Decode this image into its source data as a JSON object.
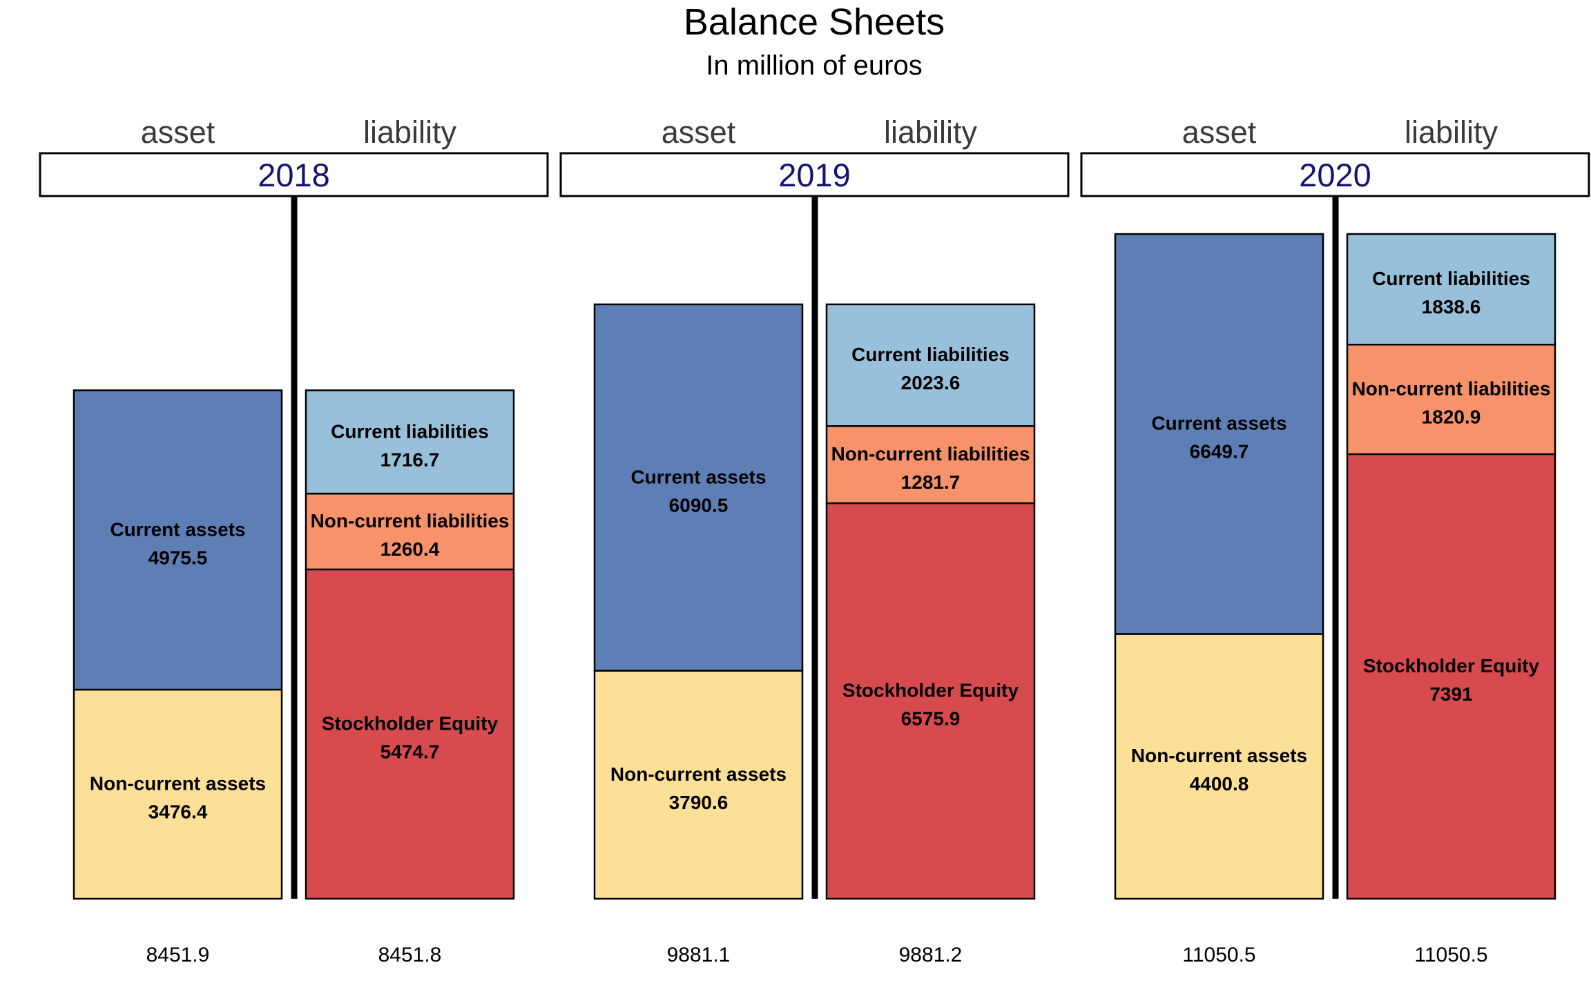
{
  "title": "Balance Sheets",
  "subtitle": "In million of euros",
  "chart_data": {
    "type": "bar",
    "stacked": true,
    "title": "Balance Sheets",
    "subtitle": "In million of euros",
    "ylim": [
      0,
      11050.5
    ],
    "side_labels": [
      "asset",
      "liability"
    ],
    "colors": {
      "Current assets": "#5e7fb6",
      "Non-current assets": "#fce097",
      "Current liabilities": "#99c0db",
      "Non-current liabilities": "#f8926a",
      "Stockholder Equity": "#d74a4e",
      "year_text": "#14146e",
      "side_text": "#3a3a3a"
    },
    "panels": [
      {
        "year": "2018",
        "asset": {
          "total_label": "8451.9",
          "segments": [
            {
              "name": "Non-current assets",
              "value": 3476.4,
              "label": "3476.4"
            },
            {
              "name": "Current assets",
              "value": 4975.5,
              "label": "4975.5"
            }
          ]
        },
        "liability": {
          "total_label": "8451.8",
          "segments": [
            {
              "name": "Stockholder Equity",
              "value": 5474.7,
              "label": "5474.7"
            },
            {
              "name": "Non-current liabilities",
              "value": 1260.4,
              "label": "1260.4"
            },
            {
              "name": "Current liabilities",
              "value": 1716.7,
              "label": "1716.7"
            }
          ]
        }
      },
      {
        "year": "2019",
        "asset": {
          "total_label": "9881.1",
          "segments": [
            {
              "name": "Non-current assets",
              "value": 3790.6,
              "label": "3790.6"
            },
            {
              "name": "Current assets",
              "value": 6090.5,
              "label": "6090.5"
            }
          ]
        },
        "liability": {
          "total_label": "9881.2",
          "segments": [
            {
              "name": "Stockholder Equity",
              "value": 6575.9,
              "label": "6575.9"
            },
            {
              "name": "Non-current liabilities",
              "value": 1281.7,
              "label": "1281.7"
            },
            {
              "name": "Current liabilities",
              "value": 2023.6,
              "label": "2023.6"
            }
          ]
        }
      },
      {
        "year": "2020",
        "asset": {
          "total_label": "11050.5",
          "segments": [
            {
              "name": "Non-current assets",
              "value": 4400.8,
              "label": "4400.8"
            },
            {
              "name": "Current assets",
              "value": 6649.7,
              "label": "6649.7"
            }
          ]
        },
        "liability": {
          "total_label": "11050.5",
          "segments": [
            {
              "name": "Stockholder Equity",
              "value": 7391,
              "label": "7391"
            },
            {
              "name": "Non-current liabilities",
              "value": 1820.9,
              "label": "1820.9"
            },
            {
              "name": "Current liabilities",
              "value": 1838.6,
              "label": "1838.6"
            }
          ]
        }
      }
    ]
  }
}
